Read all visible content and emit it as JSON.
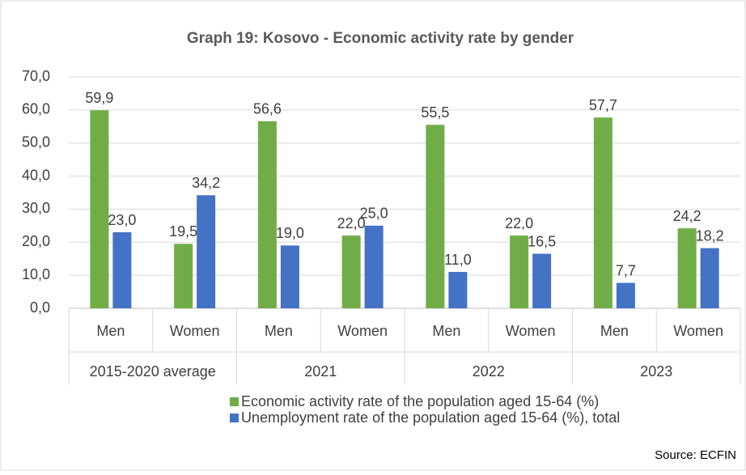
{
  "chart_data": {
    "type": "bar",
    "title": "Graph 19: Kosovo - Economic activity rate by gender",
    "categories": [
      "Men",
      "Women",
      "Men",
      "Women",
      "Men",
      "Women",
      "Men",
      "Women"
    ],
    "groups": [
      "2015-2020 average",
      "2021",
      "2022",
      "2023"
    ],
    "series": [
      {
        "name": "Economic activity rate of the population aged 15-64 (%)",
        "color": "#70ad47",
        "values": [
          59.9,
          19.5,
          56.6,
          22.0,
          55.5,
          22.0,
          57.7,
          24.2
        ],
        "value_labels": [
          "59,9",
          "19,5",
          "56,6",
          "22,0",
          "55,5",
          "22,0",
          "57,7",
          "24,2"
        ]
      },
      {
        "name": "Unemployment rate of the population aged 15-64 (%), total",
        "color": "#4472c4",
        "values": [
          23.0,
          34.2,
          19.0,
          25.0,
          11.0,
          16.5,
          7.7,
          18.2
        ],
        "value_labels": [
          "23,0",
          "34,2",
          "19,0",
          "25,0",
          "11,0",
          "16,5",
          "7,7",
          "18,2"
        ]
      }
    ],
    "ylim": [
      0,
      70
    ],
    "yticks": [
      {
        "value": 0,
        "label": "0,0"
      },
      {
        "value": 10,
        "label": "10,0"
      },
      {
        "value": 20,
        "label": "20,0"
      },
      {
        "value": 30,
        "label": "30,0"
      },
      {
        "value": 40,
        "label": "40,0"
      },
      {
        "value": 50,
        "label": "50,0"
      },
      {
        "value": 60,
        "label": "60,0"
      },
      {
        "value": 70,
        "label": "70,0"
      }
    ],
    "grid": true,
    "legend": "bottom",
    "source": "Source: ECFIN"
  }
}
